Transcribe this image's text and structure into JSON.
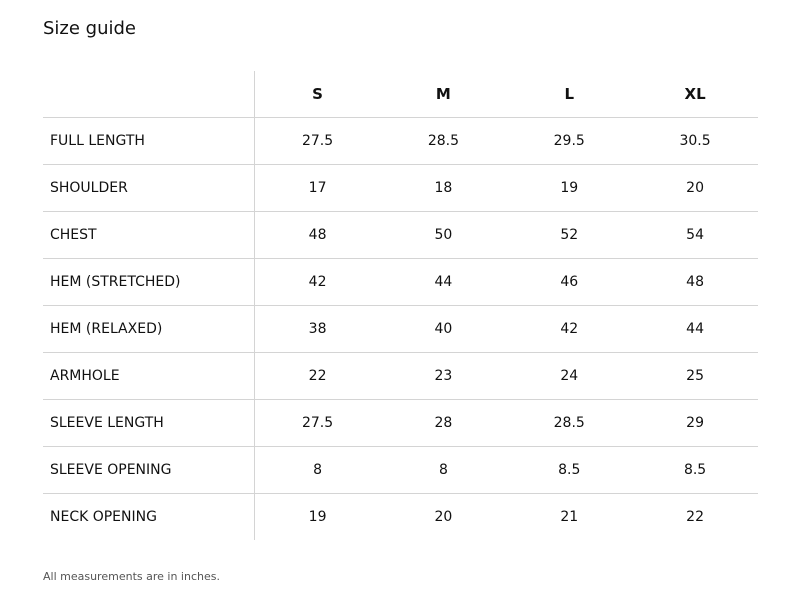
{
  "title": "Size guide",
  "table": {
    "corner": "",
    "sizes": [
      "S",
      "M",
      "L",
      "XL"
    ],
    "rows": [
      {
        "label": "FULL LENGTH",
        "values": [
          "27.5",
          "28.5",
          "29.5",
          "30.5"
        ]
      },
      {
        "label": "SHOULDER",
        "values": [
          "17",
          "18",
          "19",
          "20"
        ]
      },
      {
        "label": "CHEST",
        "values": [
          "48",
          "50",
          "52",
          "54"
        ]
      },
      {
        "label": "HEM (STRETCHED)",
        "values": [
          "42",
          "44",
          "46",
          "48"
        ]
      },
      {
        "label": "HEM (RELAXED)",
        "values": [
          "38",
          "40",
          "42",
          "44"
        ]
      },
      {
        "label": "ARMHOLE",
        "values": [
          "22",
          "23",
          "24",
          "25"
        ]
      },
      {
        "label": "SLEEVE LENGTH",
        "values": [
          "27.5",
          "28",
          "28.5",
          "29"
        ]
      },
      {
        "label": "SLEEVE OPENING",
        "values": [
          "8",
          "8",
          "8.5",
          "8.5"
        ]
      },
      {
        "label": "NECK OPENING",
        "values": [
          "19",
          "20",
          "21",
          "22"
        ]
      }
    ]
  },
  "note": "All measurements are in inches."
}
